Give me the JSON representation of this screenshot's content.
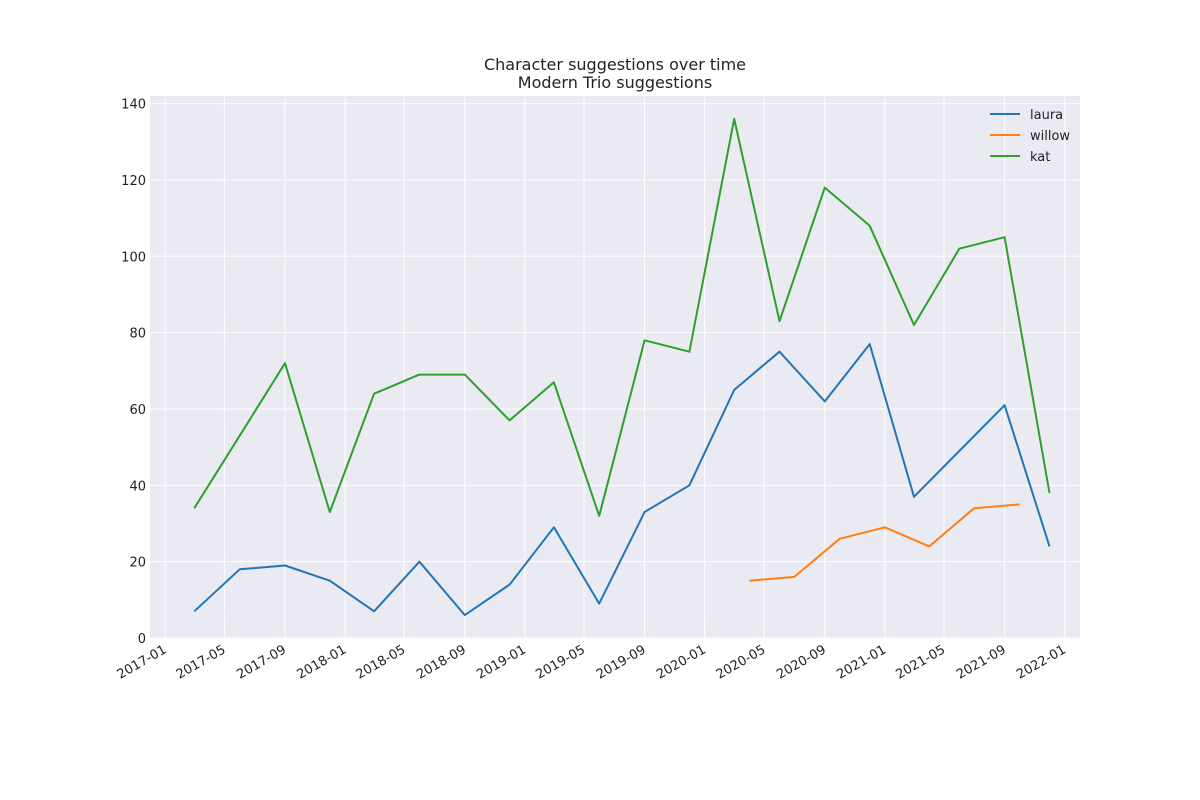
{
  "chart_data": {
    "type": "line",
    "title": "Character suggestions over time",
    "subtitle": "Modern Trio suggestions",
    "xlabel": "",
    "ylabel": "",
    "x_axis_type": "date",
    "xlim": [
      "2016-12-01",
      "2022-02-01"
    ],
    "ylim": [
      0,
      142
    ],
    "x_ticks": [
      "2017-01",
      "2017-05",
      "2017-09",
      "2018-01",
      "2018-05",
      "2018-09",
      "2019-01",
      "2019-05",
      "2019-09",
      "2020-01",
      "2020-05",
      "2020-09",
      "2021-01",
      "2021-05",
      "2021-09",
      "2022-01"
    ],
    "y_ticks": [
      0,
      20,
      40,
      60,
      80,
      100,
      120,
      140
    ],
    "grid": true,
    "legend_position": "top-right",
    "series": [
      {
        "name": "laura",
        "color": "#1f77b4",
        "x": [
          "2017-03-01",
          "2017-06-01",
          "2017-09-01",
          "2017-12-01",
          "2018-03-01",
          "2018-06-01",
          "2018-09-01",
          "2018-12-01",
          "2019-03-01",
          "2019-06-01",
          "2019-09-01",
          "2019-12-01",
          "2020-03-01",
          "2020-06-01",
          "2020-09-01",
          "2020-12-01",
          "2021-03-01",
          "2021-06-01",
          "2021-09-01",
          "2021-12-01"
        ],
        "y": [
          7,
          18,
          19,
          15,
          7,
          20,
          6,
          14,
          29,
          9,
          33,
          40,
          65,
          75,
          62,
          77,
          37,
          49,
          61,
          24
        ]
      },
      {
        "name": "willow",
        "color": "#ff7f0e",
        "x": [
          "2020-04-01",
          "2020-07-01",
          "2020-10-01",
          "2021-01-01",
          "2021-04-01",
          "2021-07-01",
          "2021-10-01"
        ],
        "y": [
          15,
          16,
          26,
          29,
          24,
          34,
          35
        ]
      },
      {
        "name": "kat",
        "color": "#2ca02c",
        "x": [
          "2017-03-01",
          "2017-06-01",
          "2017-09-01",
          "2017-12-01",
          "2018-03-01",
          "2018-06-01",
          "2018-09-01",
          "2018-12-01",
          "2019-03-01",
          "2019-06-01",
          "2019-09-01",
          "2019-12-01",
          "2020-03-01",
          "2020-06-01",
          "2020-09-01",
          "2020-12-01",
          "2021-03-01",
          "2021-06-01",
          "2021-09-01",
          "2021-12-01"
        ],
        "y": [
          34,
          53,
          72,
          33,
          64,
          69,
          69,
          57,
          67,
          32,
          78,
          75,
          136,
          83,
          118,
          108,
          82,
          102,
          105,
          38
        ]
      }
    ],
    "colors": {
      "plot_background": "#eaeaf2",
      "grid": "#ffffff"
    }
  }
}
